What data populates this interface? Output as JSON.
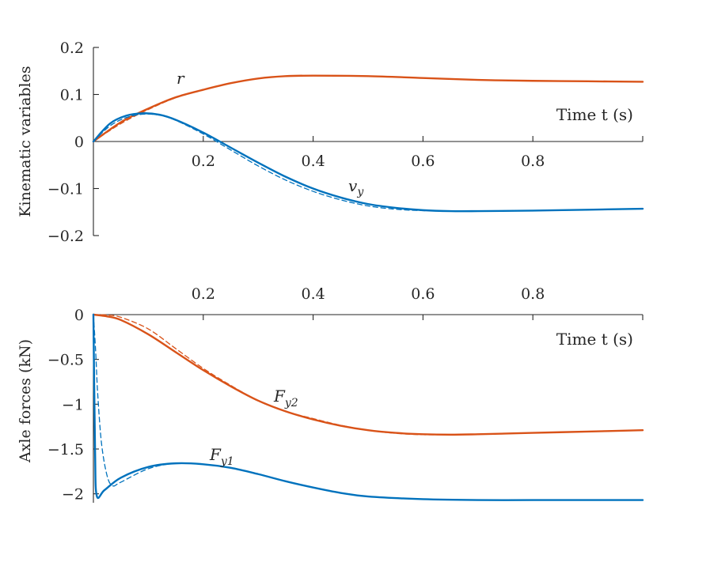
{
  "chart_data": [
    {
      "type": "line",
      "ylabel": "Kinematic variables",
      "xlabel": "Time t (s)",
      "xlim": [
        0,
        1
      ],
      "ylim": [
        -0.2,
        0.2
      ],
      "yticks": [
        0.2,
        0.1,
        0,
        -0.1,
        -0.2
      ],
      "ytick_labels": [
        "0.2",
        "0.1",
        "0",
        "−0.1",
        "−0.2"
      ],
      "xticks": [
        0.2,
        0.4,
        0.6,
        0.8
      ],
      "xtick_labels": [
        "0.2",
        "0.4",
        "0.6",
        "0.8"
      ],
      "grid": false,
      "series": [
        {
          "name": "r",
          "color": "#D95319",
          "style": "solid",
          "x": [
            0,
            0.05,
            0.1,
            0.15,
            0.2,
            0.25,
            0.3,
            0.35,
            0.4,
            0.5,
            0.6,
            0.7,
            0.8,
            0.9,
            1.0
          ],
          "y": [
            0,
            0.041,
            0.07,
            0.094,
            0.11,
            0.124,
            0.134,
            0.139,
            0.14,
            0.139,
            0.135,
            0.131,
            0.129,
            0.128,
            0.127
          ]
        },
        {
          "name": "r",
          "color": "#D95319",
          "style": "dashed",
          "x": [
            0,
            0.05,
            0.1,
            0.15,
            0.2,
            0.25,
            0.3,
            0.35,
            0.4,
            0.5,
            0.6,
            0.7,
            0.8,
            0.9,
            1.0
          ],
          "y": [
            0,
            0.038,
            0.068,
            0.093,
            0.11,
            0.124,
            0.134,
            0.139,
            0.14,
            0.139,
            0.135,
            0.131,
            0.129,
            0.128,
            0.127
          ]
        },
        {
          "name": "v_y",
          "color": "#0072BD",
          "style": "solid",
          "x": [
            0,
            0.03,
            0.06,
            0.09,
            0.12,
            0.15,
            0.2,
            0.25,
            0.3,
            0.35,
            0.4,
            0.45,
            0.5,
            0.55,
            0.6,
            0.65,
            0.7,
            0.8,
            0.9,
            1.0
          ],
          "y": [
            0,
            0.038,
            0.055,
            0.06,
            0.057,
            0.046,
            0.019,
            -0.013,
            -0.045,
            -0.075,
            -0.1,
            -0.119,
            -0.133,
            -0.141,
            -0.146,
            -0.148,
            -0.148,
            -0.147,
            -0.145,
            -0.143
          ]
        },
        {
          "name": "v_y",
          "color": "#0072BD",
          "style": "dashed",
          "x": [
            0,
            0.03,
            0.06,
            0.09,
            0.12,
            0.15,
            0.2,
            0.25,
            0.3,
            0.35,
            0.4,
            0.45,
            0.5,
            0.55,
            0.6,
            0.65,
            0.7,
            0.8,
            0.9,
            1.0
          ],
          "y": [
            0,
            0.033,
            0.051,
            0.058,
            0.056,
            0.045,
            0.016,
            -0.018,
            -0.052,
            -0.082,
            -0.106,
            -0.124,
            -0.137,
            -0.144,
            -0.147,
            -0.148,
            -0.148,
            -0.147,
            -0.145,
            -0.143
          ]
        }
      ]
    },
    {
      "type": "line",
      "ylabel": "Axle forces (kN)",
      "xlabel": "Time t (s)",
      "xlim": [
        0,
        1
      ],
      "ylim": [
        -2.1,
        0
      ],
      "yticks": [
        0,
        -0.5,
        -1,
        -1.5,
        -2
      ],
      "ytick_labels": [
        "0",
        "−0.5",
        "−1",
        "−1.5",
        "−2"
      ],
      "xticks": [
        0.2,
        0.4,
        0.6,
        0.8
      ],
      "xtick_labels": [
        "0.2",
        "0.4",
        "0.6",
        "0.8"
      ],
      "grid": false,
      "series": [
        {
          "name": "F_y2",
          "color": "#D95319",
          "style": "solid",
          "x": [
            0,
            0.025,
            0.05,
            0.1,
            0.15,
            0.2,
            0.25,
            0.3,
            0.35,
            0.4,
            0.45,
            0.5,
            0.55,
            0.6,
            0.65,
            0.7,
            0.8,
            0.9,
            1.0
          ],
          "y": [
            0,
            -0.02,
            -0.06,
            -0.22,
            -0.42,
            -0.62,
            -0.8,
            -0.96,
            -1.08,
            -1.17,
            -1.24,
            -1.29,
            -1.32,
            -1.335,
            -1.34,
            -1.335,
            -1.32,
            -1.305,
            -1.29
          ]
        },
        {
          "name": "F_y2",
          "color": "#D95319",
          "style": "dashed",
          "x": [
            0,
            0.025,
            0.05,
            0.1,
            0.15,
            0.2,
            0.25,
            0.3,
            0.35,
            0.4,
            0.45,
            0.5,
            0.55,
            0.6,
            0.65,
            0.7,
            0.8,
            0.9,
            1.0
          ],
          "y": [
            0,
            -0.005,
            -0.03,
            -0.16,
            -0.38,
            -0.6,
            -0.79,
            -0.96,
            -1.08,
            -1.16,
            -1.235,
            -1.29,
            -1.325,
            -1.34,
            -1.34,
            -1.335,
            -1.32,
            -1.305,
            -1.29
          ]
        },
        {
          "name": "F_y1",
          "color": "#0072BD",
          "style": "solid",
          "x": [
            0,
            0.003,
            0.006,
            0.02,
            0.05,
            0.1,
            0.15,
            0.2,
            0.25,
            0.3,
            0.35,
            0.4,
            0.45,
            0.5,
            0.6,
            0.7,
            0.8,
            0.9,
            1.0
          ],
          "y": [
            0,
            -1.5,
            -2.02,
            -1.96,
            -1.82,
            -1.7,
            -1.66,
            -1.67,
            -1.71,
            -1.78,
            -1.86,
            -1.93,
            -1.99,
            -2.03,
            -2.06,
            -2.07,
            -2.07,
            -2.07,
            -2.07
          ]
        },
        {
          "name": "F_y1",
          "color": "#0072BD",
          "style": "dashed",
          "x": [
            0,
            0.004,
            0.008,
            0.015,
            0.025,
            0.035,
            0.05,
            0.1,
            0.15,
            0.2,
            0.25,
            0.3,
            0.35,
            0.4,
            0.45,
            0.5,
            0.6,
            0.7,
            0.8,
            0.9,
            1.0
          ],
          "y": [
            0,
            -0.4,
            -0.9,
            -1.45,
            -1.8,
            -1.91,
            -1.87,
            -1.72,
            -1.66,
            -1.67,
            -1.71,
            -1.78,
            -1.86,
            -1.93,
            -1.99,
            -2.03,
            -2.06,
            -2.07,
            -2.07,
            -2.07,
            -2.07
          ]
        }
      ]
    }
  ],
  "labels": {
    "r": "r",
    "vy_main": "v",
    "vy_sub": "y",
    "fy2_main": "F",
    "fy2_sub": "y2",
    "fy1_main": "F",
    "fy1_sub": "y1"
  }
}
